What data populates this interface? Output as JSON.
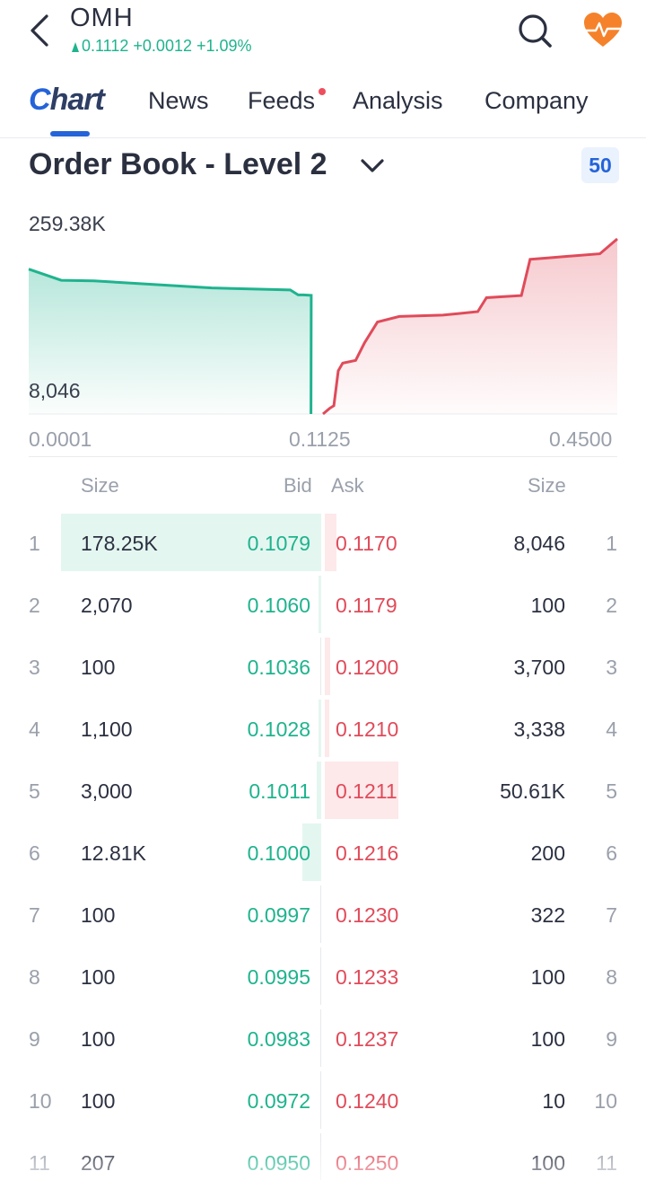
{
  "header": {
    "ticker": "OMH",
    "quote_price": "0.1112",
    "quote_change": "+0.0012",
    "quote_pct": "+1.09%",
    "colors": {
      "up": "#1fb38e",
      "down": "#e04b5a",
      "accent": "#2563d9",
      "favorite": "#f5822a"
    }
  },
  "tabs": [
    {
      "label": "Chart",
      "active": true
    },
    {
      "label": "News"
    },
    {
      "label": "Feeds",
      "has_dot": true
    },
    {
      "label": "Analysis"
    },
    {
      "label": "Company"
    }
  ],
  "section": {
    "title": "Order Book - Level 2",
    "depth": "50"
  },
  "chart_data": {
    "type": "area",
    "y_max_label": "259.38K",
    "y_min_label": "8,046",
    "x_labels": [
      "0.0001",
      "0.1125",
      "0.4500"
    ],
    "bid_depth": {
      "color": "#1fb38e",
      "x": [
        0.0001,
        0.0125,
        0.025,
        0.07,
        0.1,
        0.103,
        0.105,
        0.108,
        0.1079
      ],
      "y": [
        216000,
        200000,
        199000,
        189000,
        186000,
        179000,
        179000,
        178250,
        8046
      ]
    },
    "ask_depth": {
      "color": "#e04b5a",
      "x": [
        0.1125,
        0.12,
        0.125,
        0.13,
        0.135,
        0.15,
        0.16,
        0.175,
        0.2,
        0.25,
        0.29,
        0.3,
        0.34,
        0.35,
        0.37,
        0.43,
        0.45
      ],
      "y": [
        8046,
        16000,
        20000,
        70000,
        81000,
        85000,
        110000,
        140000,
        148000,
        150000,
        155000,
        175000,
        178000,
        230000,
        232000,
        238000,
        259380
      ]
    }
  },
  "table": {
    "headers": {
      "size_left": "Size",
      "bid": "Bid",
      "ask": "Ask",
      "size_right": "Size"
    },
    "rows": [
      {
        "level": "1",
        "bid_size": "178.25K",
        "bid": "0.1079",
        "ask": "0.1170",
        "ask_size": "8,046",
        "bid_share": 1.0,
        "ask_share": 0.16
      },
      {
        "level": "2",
        "bid_size": "2,070",
        "bid": "0.1060",
        "ask": "0.1179",
        "ask_size": "100",
        "bid_share": 0.012,
        "ask_share": 0.0
      },
      {
        "level": "3",
        "bid_size": "100",
        "bid": "0.1036",
        "ask": "0.1200",
        "ask_size": "3,700",
        "bid_share": 0.0,
        "ask_share": 0.07
      },
      {
        "level": "4",
        "bid_size": "1,100",
        "bid": "0.1028",
        "ask": "0.1210",
        "ask_size": "3,338",
        "bid_share": 0.006,
        "ask_share": 0.066
      },
      {
        "level": "5",
        "bid_size": "3,000",
        "bid": "0.1011",
        "ask": "0.1211",
        "ask_size": "50.61K",
        "bid_share": 0.017,
        "ask_share": 1.0
      },
      {
        "level": "6",
        "bid_size": "12.81K",
        "bid": "0.1000",
        "ask": "0.1216",
        "ask_size": "200",
        "bid_share": 0.072,
        "ask_share": 0.0
      },
      {
        "level": "7",
        "bid_size": "100",
        "bid": "0.0997",
        "ask": "0.1230",
        "ask_size": "322",
        "bid_share": 0.0,
        "ask_share": 0.0
      },
      {
        "level": "8",
        "bid_size": "100",
        "bid": "0.0995",
        "ask": "0.1233",
        "ask_size": "100",
        "bid_share": 0.0,
        "ask_share": 0.0
      },
      {
        "level": "9",
        "bid_size": "100",
        "bid": "0.0983",
        "ask": "0.1237",
        "ask_size": "100",
        "bid_share": 0.0,
        "ask_share": 0.0
      },
      {
        "level": "10",
        "bid_size": "100",
        "bid": "0.0972",
        "ask": "0.1240",
        "ask_size": "10",
        "bid_share": 0.0,
        "ask_share": 0.0
      },
      {
        "level": "11",
        "bid_size": "207",
        "bid": "0.0950",
        "ask": "0.1250",
        "ask_size": "100",
        "bid_share": 0.0,
        "ask_share": 0.0
      }
    ]
  }
}
